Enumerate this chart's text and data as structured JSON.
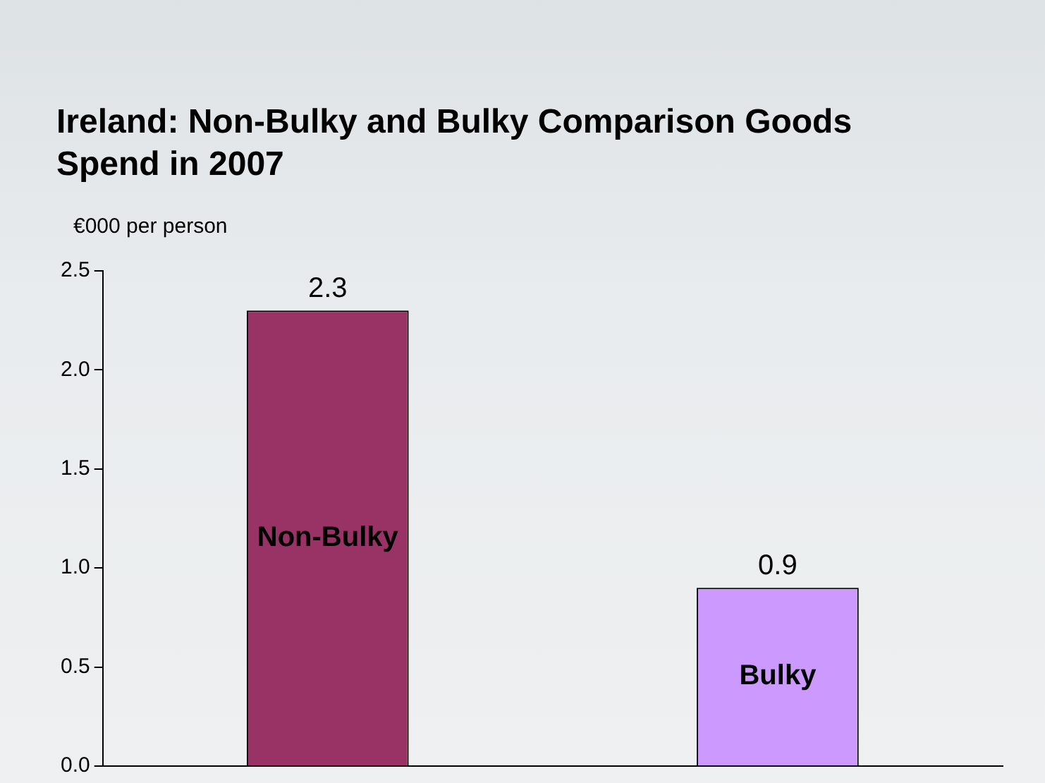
{
  "chart_data": {
    "type": "bar",
    "title": "Ireland: Non-Bulky and Bulky Comparison Goods Spend in 2007",
    "ylabel": "€000 per person",
    "categories": [
      "Non-Bulky",
      "Bulky"
    ],
    "values": [
      2.3,
      0.9
    ],
    "colors": [
      "#993366",
      "#cc99ff"
    ],
    "ylim": [
      0,
      2.5
    ],
    "yticks": [
      {
        "value": 0,
        "label": "0.0"
      },
      {
        "value": 0.5,
        "label": "0.5"
      },
      {
        "value": 1,
        "label": "1.0"
      },
      {
        "value": 1.5,
        "label": "1.5"
      },
      {
        "value": 2,
        "label": "2.0"
      },
      {
        "value": 2.5,
        "label": "2.5"
      }
    ],
    "data_labels": true,
    "grid": false,
    "legend": false,
    "tick_labels": "y"
  }
}
